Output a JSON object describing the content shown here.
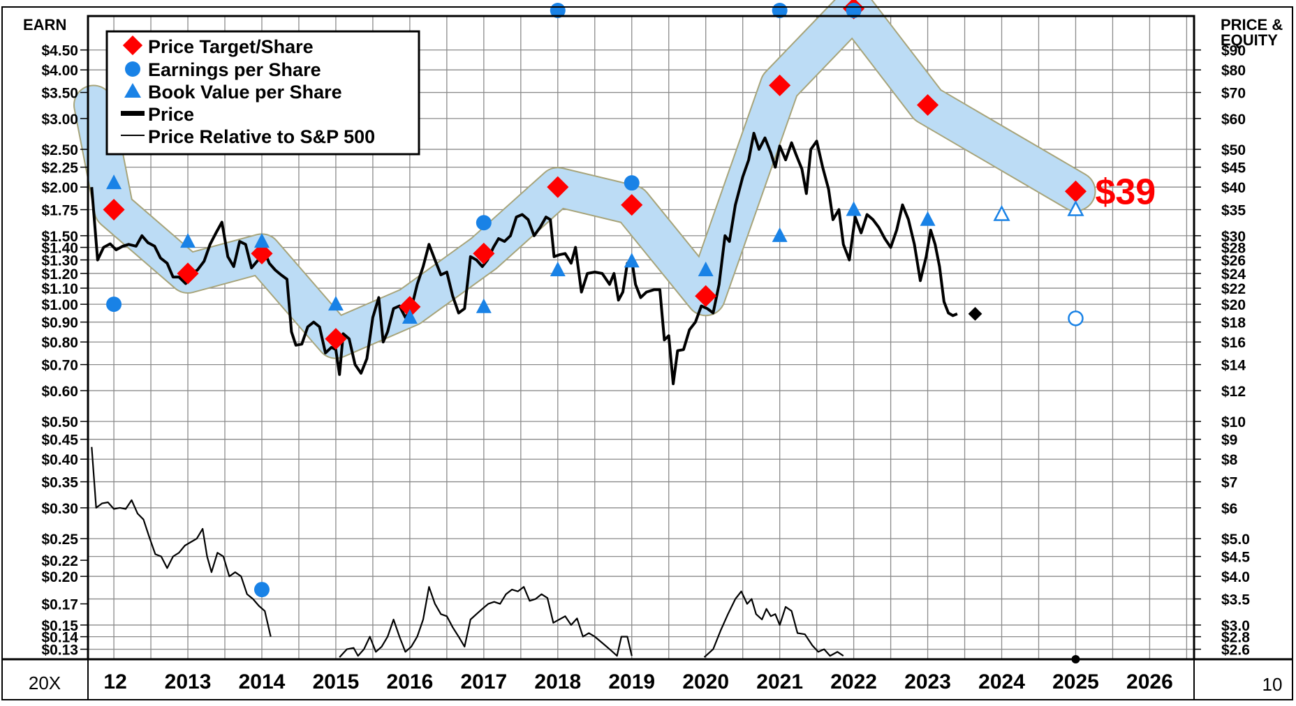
{
  "chart_data": {
    "type": "line",
    "left_axis_title": "EARN",
    "right_axis_title": "PRICE &\nEQUITY",
    "bottom_left_label": "20X",
    "bottom_right_label": "10",
    "target_label": "$39",
    "legend": {
      "target": "Price Target/Share",
      "eps": "Earnings per Share",
      "bvps": "Book Value per Share",
      "price": "Price",
      "relative": "Price Relative to S&P 500"
    },
    "x_categories": [
      "12",
      "2013",
      "2014",
      "2015",
      "2016",
      "2017",
      "2018",
      "2019",
      "2020",
      "2021",
      "2022",
      "2023",
      "2024",
      "2025",
      "2026"
    ],
    "x_range": [
      2011.65,
      2026.6
    ],
    "left_ticks": [
      "$4.50",
      "$4.00",
      "$3.50",
      "$3.00",
      "$2.50",
      "$2.25",
      "$2.00",
      "$1.75",
      "$1.50",
      "$1.40",
      "$1.30",
      "$1.20",
      "$1.10",
      "$1.00",
      "$0.90",
      "$0.80",
      "$0.70",
      "$0.60",
      "$0.50",
      "$0.45",
      "$0.40",
      "$0.35",
      "$0.30",
      "$0.25",
      "$0.22",
      "$0.20",
      "$0.17",
      "$0.15",
      "$0.14",
      "$0.13"
    ],
    "left_tick_values": [
      4.5,
      4.0,
      3.5,
      3.0,
      2.5,
      2.25,
      2.0,
      1.75,
      1.5,
      1.4,
      1.3,
      1.2,
      1.1,
      1.0,
      0.9,
      0.8,
      0.7,
      0.6,
      0.5,
      0.45,
      0.4,
      0.35,
      0.3,
      0.25,
      0.22,
      0.2,
      0.17,
      0.15,
      0.14,
      0.13
    ],
    "right_ticks": [
      "$90",
      "$80",
      "$70",
      "$60",
      "$50",
      "$45",
      "$40",
      "$35",
      "$30",
      "$28",
      "$26",
      "$24",
      "$22",
      "$20",
      "$18",
      "$16",
      "$14",
      "$12",
      "$10",
      "$9",
      "$8",
      "$7",
      "$6",
      "$5.0",
      "$4.5",
      "$4.0",
      "$3.5",
      "$3.0",
      "$2.8",
      "$2.6"
    ],
    "right_tick_values": [
      90,
      80,
      70,
      60,
      50,
      45,
      40,
      35,
      30,
      28,
      26,
      24,
      22,
      20,
      18,
      16,
      14,
      12,
      10,
      9,
      8,
      7,
      6,
      5.0,
      4.5,
      4.0,
      3.5,
      3.0,
      2.8,
      2.6
    ],
    "price_range": [
      2.45,
      110
    ],
    "price_target": [
      {
        "x": 2012.0,
        "y": 35
      },
      {
        "x": 2013.0,
        "y": 24
      },
      {
        "x": 2014.0,
        "y": 27
      },
      {
        "x": 2015.0,
        "y": 16.3
      },
      {
        "x": 2016.0,
        "y": 19.7
      },
      {
        "x": 2017.0,
        "y": 27
      },
      {
        "x": 2018.0,
        "y": 40
      },
      {
        "x": 2019.0,
        "y": 36
      },
      {
        "x": 2020.0,
        "y": 21
      },
      {
        "x": 2021.0,
        "y": 73
      },
      {
        "x": 2022.0,
        "y": 115
      },
      {
        "x": 2023.0,
        "y": 65
      },
      {
        "x": 2025.0,
        "y": 39
      }
    ],
    "target_band_halfwidth_log": 0.06,
    "eps": [
      {
        "x": 2012.0,
        "y": 1.0
      },
      {
        "x": 2014.0,
        "y": 0.185
      },
      {
        "x": 2017.0,
        "y": 1.62
      },
      {
        "x": 2018.0,
        "y": 6.0
      },
      {
        "x": 2019.0,
        "y": 2.05
      },
      {
        "x": 2021.0,
        "y": 6.5
      },
      {
        "x": 2022.0,
        "y": 6.6
      }
    ],
    "eps_estimate": [
      {
        "x": 2025.0,
        "y": 0.92
      }
    ],
    "bvps": [
      {
        "x": 2012.0,
        "y": 41
      },
      {
        "x": 2013.0,
        "y": 29
      },
      {
        "x": 2014.0,
        "y": 29
      },
      {
        "x": 2015.0,
        "y": 20
      },
      {
        "x": 2016.0,
        "y": 18.5
      },
      {
        "x": 2017.0,
        "y": 19.7
      },
      {
        "x": 2018.0,
        "y": 24.5
      },
      {
        "x": 2019.0,
        "y": 25.8
      },
      {
        "x": 2020.0,
        "y": 24.5
      },
      {
        "x": 2021.0,
        "y": 30
      },
      {
        "x": 2022.0,
        "y": 35
      },
      {
        "x": 2023.0,
        "y": 33
      }
    ],
    "bvps_estimate": [
      {
        "x": 2024.0,
        "y": 34
      },
      {
        "x": 2025.0,
        "y": 35
      }
    ],
    "last_price": {
      "x": 2024.0,
      "y": 18.9
    },
    "price": [
      {
        "x": 2011.7,
        "y": 40
      },
      {
        "x": 2011.78,
        "y": 26
      },
      {
        "x": 2011.86,
        "y": 28
      },
      {
        "x": 2011.95,
        "y": 28.6
      },
      {
        "x": 2012.03,
        "y": 27.6
      },
      {
        "x": 2012.12,
        "y": 28.2
      },
      {
        "x": 2012.2,
        "y": 28.5
      },
      {
        "x": 2012.3,
        "y": 28.2
      },
      {
        "x": 2012.38,
        "y": 30
      },
      {
        "x": 2012.46,
        "y": 28.8
      },
      {
        "x": 2012.55,
        "y": 28.2
      },
      {
        "x": 2012.63,
        "y": 26.3
      },
      {
        "x": 2012.72,
        "y": 25.5
      },
      {
        "x": 2012.8,
        "y": 23.5
      },
      {
        "x": 2012.88,
        "y": 23.5
      },
      {
        "x": 2012.97,
        "y": 22.6
      },
      {
        "x": 2013.05,
        "y": 24
      },
      {
        "x": 2013.13,
        "y": 24.5
      },
      {
        "x": 2013.22,
        "y": 25.8
      },
      {
        "x": 2013.3,
        "y": 28.5
      },
      {
        "x": 2013.38,
        "y": 30.5
      },
      {
        "x": 2013.46,
        "y": 32.5
      },
      {
        "x": 2013.54,
        "y": 26.5
      },
      {
        "x": 2013.62,
        "y": 25
      },
      {
        "x": 2013.7,
        "y": 29
      },
      {
        "x": 2013.78,
        "y": 28.5
      },
      {
        "x": 2013.86,
        "y": 24.8
      },
      {
        "x": 2013.95,
        "y": 26
      },
      {
        "x": 2014.03,
        "y": 27.5
      },
      {
        "x": 2014.1,
        "y": 25.5
      },
      {
        "x": 2014.18,
        "y": 24.5
      },
      {
        "x": 2014.26,
        "y": 23.8
      },
      {
        "x": 2014.34,
        "y": 23.2
      },
      {
        "x": 2014.4,
        "y": 17
      },
      {
        "x": 2014.46,
        "y": 15.7
      },
      {
        "x": 2014.54,
        "y": 15.8
      },
      {
        "x": 2014.62,
        "y": 17.5
      },
      {
        "x": 2014.7,
        "y": 18
      },
      {
        "x": 2014.78,
        "y": 17.5
      },
      {
        "x": 2014.86,
        "y": 15
      },
      {
        "x": 2014.94,
        "y": 15.5
      },
      {
        "x": 2015.0,
        "y": 15.3
      },
      {
        "x": 2015.05,
        "y": 13.2
      },
      {
        "x": 2015.1,
        "y": 16.8
      },
      {
        "x": 2015.18,
        "y": 16.3
      },
      {
        "x": 2015.26,
        "y": 14
      },
      {
        "x": 2015.34,
        "y": 13.3
      },
      {
        "x": 2015.42,
        "y": 14.5
      },
      {
        "x": 2015.5,
        "y": 18.5
      },
      {
        "x": 2015.58,
        "y": 20.8
      },
      {
        "x": 2015.64,
        "y": 16
      },
      {
        "x": 2015.7,
        "y": 17
      },
      {
        "x": 2015.78,
        "y": 19.5
      },
      {
        "x": 2015.86,
        "y": 19.8
      },
      {
        "x": 2015.94,
        "y": 18.5
      },
      {
        "x": 2016.02,
        "y": 19.5
      },
      {
        "x": 2016.1,
        "y": 22.5
      },
      {
        "x": 2016.18,
        "y": 25
      },
      {
        "x": 2016.26,
        "y": 28.5
      },
      {
        "x": 2016.34,
        "y": 26
      },
      {
        "x": 2016.42,
        "y": 23.8
      },
      {
        "x": 2016.5,
        "y": 24.2
      },
      {
        "x": 2016.58,
        "y": 21
      },
      {
        "x": 2016.66,
        "y": 19
      },
      {
        "x": 2016.74,
        "y": 19.5
      },
      {
        "x": 2016.82,
        "y": 26.5
      },
      {
        "x": 2016.9,
        "y": 26
      },
      {
        "x": 2016.98,
        "y": 25
      },
      {
        "x": 2017.05,
        "y": 26
      },
      {
        "x": 2017.13,
        "y": 28
      },
      {
        "x": 2017.2,
        "y": 29.5
      },
      {
        "x": 2017.28,
        "y": 29
      },
      {
        "x": 2017.36,
        "y": 30
      },
      {
        "x": 2017.44,
        "y": 33.5
      },
      {
        "x": 2017.52,
        "y": 34
      },
      {
        "x": 2017.6,
        "y": 33
      },
      {
        "x": 2017.68,
        "y": 30
      },
      {
        "x": 2017.76,
        "y": 31.5
      },
      {
        "x": 2017.84,
        "y": 33.5
      },
      {
        "x": 2017.9,
        "y": 33
      },
      {
        "x": 2017.95,
        "y": 26.5
      },
      {
        "x": 2018.02,
        "y": 26.8
      },
      {
        "x": 2018.1,
        "y": 27
      },
      {
        "x": 2018.18,
        "y": 25.5
      },
      {
        "x": 2018.24,
        "y": 28
      },
      {
        "x": 2018.32,
        "y": 21.5
      },
      {
        "x": 2018.4,
        "y": 24
      },
      {
        "x": 2018.5,
        "y": 24.2
      },
      {
        "x": 2018.6,
        "y": 24
      },
      {
        "x": 2018.7,
        "y": 22.5
      },
      {
        "x": 2018.76,
        "y": 24
      },
      {
        "x": 2018.82,
        "y": 20.5
      },
      {
        "x": 2018.88,
        "y": 21.5
      },
      {
        "x": 2018.94,
        "y": 25.5
      },
      {
        "x": 2019.0,
        "y": 26
      },
      {
        "x": 2019.05,
        "y": 22.5
      },
      {
        "x": 2019.12,
        "y": 20.8
      },
      {
        "x": 2019.2,
        "y": 21.5
      },
      {
        "x": 2019.3,
        "y": 21.8
      },
      {
        "x": 2019.38,
        "y": 21.8
      },
      {
        "x": 2019.44,
        "y": 16.2
      },
      {
        "x": 2019.5,
        "y": 16.6
      },
      {
        "x": 2019.56,
        "y": 12.5
      },
      {
        "x": 2019.62,
        "y": 15.2
      },
      {
        "x": 2019.7,
        "y": 15.3
      },
      {
        "x": 2019.78,
        "y": 17.2
      },
      {
        "x": 2019.86,
        "y": 18
      },
      {
        "x": 2019.94,
        "y": 19.8
      },
      {
        "x": 2020.02,
        "y": 19.5
      },
      {
        "x": 2020.1,
        "y": 19
      },
      {
        "x": 2020.18,
        "y": 22.5
      },
      {
        "x": 2020.26,
        "y": 30
      },
      {
        "x": 2020.32,
        "y": 29
      },
      {
        "x": 2020.4,
        "y": 36
      },
      {
        "x": 2020.5,
        "y": 42.5
      },
      {
        "x": 2020.58,
        "y": 47
      },
      {
        "x": 2020.65,
        "y": 55
      },
      {
        "x": 2020.72,
        "y": 50
      },
      {
        "x": 2020.8,
        "y": 53.5
      },
      {
        "x": 2020.88,
        "y": 49
      },
      {
        "x": 2020.94,
        "y": 45
      },
      {
        "x": 2021.0,
        "y": 51
      },
      {
        "x": 2021.08,
        "y": 47
      },
      {
        "x": 2021.16,
        "y": 52
      },
      {
        "x": 2021.22,
        "y": 48.5
      },
      {
        "x": 2021.3,
        "y": 44.5
      },
      {
        "x": 2021.36,
        "y": 38.5
      },
      {
        "x": 2021.42,
        "y": 50
      },
      {
        "x": 2021.5,
        "y": 52.5
      },
      {
        "x": 2021.58,
        "y": 45
      },
      {
        "x": 2021.66,
        "y": 39.5
      },
      {
        "x": 2021.72,
        "y": 33
      },
      {
        "x": 2021.8,
        "y": 35
      },
      {
        "x": 2021.86,
        "y": 28.5
      },
      {
        "x": 2021.94,
        "y": 26
      },
      {
        "x": 2022.02,
        "y": 33.5
      },
      {
        "x": 2022.1,
        "y": 30.5
      },
      {
        "x": 2022.18,
        "y": 34
      },
      {
        "x": 2022.26,
        "y": 33
      },
      {
        "x": 2022.34,
        "y": 31.5
      },
      {
        "x": 2022.42,
        "y": 29.5
      },
      {
        "x": 2022.5,
        "y": 28
      },
      {
        "x": 2022.58,
        "y": 31
      },
      {
        "x": 2022.66,
        "y": 36
      },
      {
        "x": 2022.74,
        "y": 33
      },
      {
        "x": 2022.82,
        "y": 28.5
      },
      {
        "x": 2022.9,
        "y": 23
      },
      {
        "x": 2022.98,
        "y": 26.5
      },
      {
        "x": 2023.04,
        "y": 31
      },
      {
        "x": 2023.1,
        "y": 28.5
      },
      {
        "x": 2023.16,
        "y": 25
      },
      {
        "x": 2023.22,
        "y": 20.3
      },
      {
        "x": 2023.28,
        "y": 19
      },
      {
        "x": 2023.34,
        "y": 18.7
      },
      {
        "x": 2023.4,
        "y": 18.9
      }
    ],
    "relative_range": [
      0.125,
      4.95
    ],
    "relative": [
      {
        "x": 2011.7,
        "y": 0.43
      },
      {
        "x": 2011.76,
        "y": 0.3
      },
      {
        "x": 2011.84,
        "y": 0.308
      },
      {
        "x": 2011.92,
        "y": 0.31
      },
      {
        "x": 2012.0,
        "y": 0.298
      },
      {
        "x": 2012.08,
        "y": 0.3
      },
      {
        "x": 2012.16,
        "y": 0.298
      },
      {
        "x": 2012.24,
        "y": 0.314
      },
      {
        "x": 2012.32,
        "y": 0.29
      },
      {
        "x": 2012.4,
        "y": 0.28
      },
      {
        "x": 2012.48,
        "y": 0.252
      },
      {
        "x": 2012.56,
        "y": 0.228
      },
      {
        "x": 2012.64,
        "y": 0.225
      },
      {
        "x": 2012.72,
        "y": 0.21
      },
      {
        "x": 2012.8,
        "y": 0.225
      },
      {
        "x": 2012.88,
        "y": 0.23
      },
      {
        "x": 2012.96,
        "y": 0.24
      },
      {
        "x": 2013.04,
        "y": 0.245
      },
      {
        "x": 2013.12,
        "y": 0.25
      },
      {
        "x": 2013.2,
        "y": 0.265
      },
      {
        "x": 2013.26,
        "y": 0.225
      },
      {
        "x": 2013.32,
        "y": 0.205
      },
      {
        "x": 2013.4,
        "y": 0.23
      },
      {
        "x": 2013.48,
        "y": 0.225
      },
      {
        "x": 2013.56,
        "y": 0.2
      },
      {
        "x": 2013.64,
        "y": 0.205
      },
      {
        "x": 2013.72,
        "y": 0.2
      },
      {
        "x": 2013.8,
        "y": 0.18
      },
      {
        "x": 2013.88,
        "y": 0.175
      },
      {
        "x": 2013.96,
        "y": 0.168
      },
      {
        "x": 2014.04,
        "y": 0.163
      },
      {
        "x": 2014.12,
        "y": 0.14
      }
    ],
    "relative_tail": [
      {
        "x": 2015.05,
        "y": 0.124
      },
      {
        "x": 2015.15,
        "y": 0.13
      },
      {
        "x": 2015.24,
        "y": 0.131
      },
      {
        "x": 2015.3,
        "y": 0.125
      },
      {
        "x": 2015.38,
        "y": 0.13
      },
      {
        "x": 2015.46,
        "y": 0.14
      },
      {
        "x": 2015.54,
        "y": 0.128
      },
      {
        "x": 2015.62,
        "y": 0.132
      },
      {
        "x": 2015.7,
        "y": 0.14
      },
      {
        "x": 2015.78,
        "y": 0.155
      },
      {
        "x": 2015.86,
        "y": 0.14
      },
      {
        "x": 2015.94,
        "y": 0.128
      },
      {
        "x": 2016.02,
        "y": 0.132
      },
      {
        "x": 2016.1,
        "y": 0.14
      },
      {
        "x": 2016.18,
        "y": 0.155
      },
      {
        "x": 2016.26,
        "y": 0.188
      },
      {
        "x": 2016.34,
        "y": 0.17
      },
      {
        "x": 2016.42,
        "y": 0.16
      },
      {
        "x": 2016.5,
        "y": 0.158
      },
      {
        "x": 2016.58,
        "y": 0.148
      },
      {
        "x": 2016.66,
        "y": 0.14
      },
      {
        "x": 2016.74,
        "y": 0.132
      },
      {
        "x": 2016.82,
        "y": 0.155
      },
      {
        "x": 2016.9,
        "y": 0.16
      },
      {
        "x": 2016.98,
        "y": 0.165
      },
      {
        "x": 2017.06,
        "y": 0.17
      },
      {
        "x": 2017.14,
        "y": 0.172
      },
      {
        "x": 2017.22,
        "y": 0.17
      },
      {
        "x": 2017.3,
        "y": 0.18
      },
      {
        "x": 2017.38,
        "y": 0.185
      },
      {
        "x": 2017.46,
        "y": 0.183
      },
      {
        "x": 2017.54,
        "y": 0.188
      },
      {
        "x": 2017.62,
        "y": 0.173
      },
      {
        "x": 2017.7,
        "y": 0.175
      },
      {
        "x": 2017.78,
        "y": 0.18
      },
      {
        "x": 2017.86,
        "y": 0.176
      },
      {
        "x": 2017.94,
        "y": 0.152
      },
      {
        "x": 2018.02,
        "y": 0.155
      },
      {
        "x": 2018.1,
        "y": 0.158
      },
      {
        "x": 2018.18,
        "y": 0.15
      },
      {
        "x": 2018.26,
        "y": 0.156
      },
      {
        "x": 2018.34,
        "y": 0.14
      },
      {
        "x": 2018.42,
        "y": 0.143
      },
      {
        "x": 2018.5,
        "y": 0.14
      },
      {
        "x": 2018.6,
        "y": 0.135
      },
      {
        "x": 2018.7,
        "y": 0.13
      },
      {
        "x": 2018.8,
        "y": 0.125
      },
      {
        "x": 2018.86,
        "y": 0.14
      },
      {
        "x": 2018.94,
        "y": 0.14
      },
      {
        "x": 2019.0,
        "y": 0.125
      }
    ],
    "relative_tail2": [
      {
        "x": 2019.98,
        "y": 0.124
      },
      {
        "x": 2020.1,
        "y": 0.13
      },
      {
        "x": 2020.2,
        "y": 0.145
      },
      {
        "x": 2020.3,
        "y": 0.16
      },
      {
        "x": 2020.4,
        "y": 0.175
      },
      {
        "x": 2020.48,
        "y": 0.183
      },
      {
        "x": 2020.56,
        "y": 0.17
      },
      {
        "x": 2020.62,
        "y": 0.175
      },
      {
        "x": 2020.68,
        "y": 0.16
      },
      {
        "x": 2020.76,
        "y": 0.155
      },
      {
        "x": 2020.82,
        "y": 0.165
      },
      {
        "x": 2020.88,
        "y": 0.158
      },
      {
        "x": 2020.94,
        "y": 0.16
      },
      {
        "x": 2021.0,
        "y": 0.15
      },
      {
        "x": 2021.08,
        "y": 0.167
      },
      {
        "x": 2021.16,
        "y": 0.163
      },
      {
        "x": 2021.24,
        "y": 0.143
      },
      {
        "x": 2021.34,
        "y": 0.142
      },
      {
        "x": 2021.44,
        "y": 0.133
      },
      {
        "x": 2021.52,
        "y": 0.128
      },
      {
        "x": 2021.6,
        "y": 0.13
      },
      {
        "x": 2021.68,
        "y": 0.125
      },
      {
        "x": 2021.78,
        "y": 0.128
      },
      {
        "x": 2021.86,
        "y": 0.125
      }
    ]
  }
}
